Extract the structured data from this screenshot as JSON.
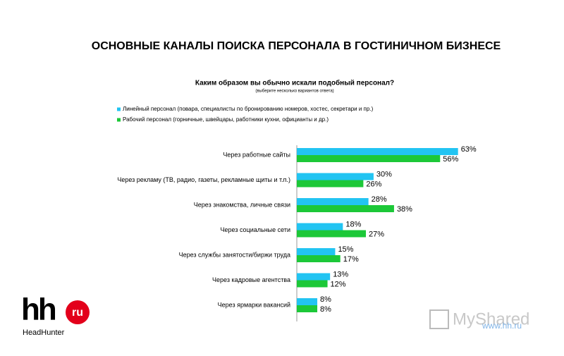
{
  "page_title": "ОСНОВНЫЕ КАНАЛЫ ПОИСКА ПЕРСОНАЛА В ГОСТИНИЧНОМ БИЗНЕСЕ",
  "logo": {
    "hh": "hh",
    "ru": "ru",
    "name": "HeadHunter"
  },
  "watermark": "MyShared",
  "website": "www.hh.ru",
  "chart_data": {
    "type": "barh",
    "title": "Каким образом вы обычно искали подобный персонал?",
    "subtitle": "(выберите несколько вариантов ответа)",
    "categories": [
      "Через работные сайты",
      "Через рекламу (ТВ, радио, газеты, рекламные щиты и т.п.)",
      "Через знакомства, личные связи",
      "Через социальные сети",
      "Через службы занятости/биржи труда",
      "Через кадровые агентства",
      "Через ярмарки вакансий"
    ],
    "series": [
      {
        "name": "Линейный персонал (повара, специалисты по бронированию номеров, хостес, секретари и пр.)",
        "color": "#22c4f2",
        "values": [
          63,
          30,
          28,
          18,
          15,
          13,
          8
        ],
        "value_labels": [
          "63%",
          "30%",
          "28%",
          "18%",
          "15%",
          "13%",
          "8%"
        ]
      },
      {
        "name": "Рабочий персонал (горничные, швейцары, работники кухни, официанты и др.)",
        "color": "#1cc838",
        "values": [
          56,
          26,
          38,
          27,
          17,
          12,
          8
        ],
        "value_labels": [
          "56%",
          "26%",
          "38%",
          "27%",
          "17%",
          "12%",
          "8%"
        ]
      }
    ]
  }
}
